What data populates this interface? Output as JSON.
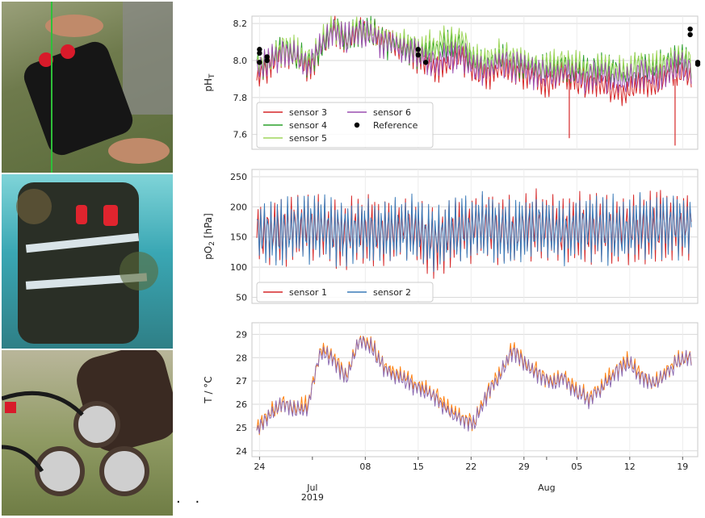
{
  "photos": [
    {
      "name": "sensor housing held in hands"
    },
    {
      "name": "sensor housing underwater with biofouling"
    },
    {
      "name": "recovered fouled sensor housing on grass"
    }
  ],
  "ellipsis": "· ·",
  "chart_data": [
    {
      "type": "line",
      "panel": "pH",
      "ylabel": "pH",
      "ylabel_sub": "T",
      "ylim": [
        7.52,
        8.24
      ],
      "yticks": [
        7.6,
        7.8,
        8.0,
        8.2
      ],
      "ytick_labels": [
        "7.6",
        "7.8",
        "8.0",
        "8.2"
      ],
      "grid": true,
      "legend_position": "lower-left",
      "legend_columns": 2,
      "series": [
        {
          "name": "sensor 3",
          "color": "#d62728",
          "values": [
            7.92,
            7.98,
            8.05,
            8.02,
            7.95,
            8.06,
            8.19,
            8.1,
            8.16,
            8.14,
            8.12,
            8.08,
            8.06,
            8.0,
            7.96,
            7.98,
            8.02,
            7.95,
            7.93,
            7.96,
            7.94,
            7.92,
            7.9,
            7.88,
            7.92,
            7.9,
            7.86,
            7.88,
            7.84,
            7.82,
            7.88,
            7.86,
            7.92,
            7.95,
            7.9
          ]
        },
        {
          "name": "sensor 4",
          "color": "#2ca02c",
          "values": [
            7.96,
            8.0,
            8.06,
            8.03,
            7.98,
            8.08,
            8.18,
            8.12,
            8.16,
            8.15,
            8.1,
            8.09,
            8.06,
            8.04,
            8.05,
            8.08,
            8.09,
            8.0,
            7.98,
            8.02,
            8.0,
            7.98,
            7.96,
            7.96,
            7.98,
            7.95,
            7.94,
            7.96,
            7.95,
            7.93,
            7.97,
            7.95,
            7.98,
            8.01,
            7.98
          ]
        },
        {
          "name": "sensor 5",
          "color": "#9fd65c",
          "values": [
            7.97,
            8.01,
            8.07,
            8.04,
            7.99,
            8.09,
            8.19,
            8.13,
            8.17,
            8.16,
            8.11,
            8.1,
            8.07,
            8.08,
            8.09,
            8.1,
            8.11,
            8.02,
            7.99,
            8.03,
            8.01,
            7.99,
            7.97,
            7.97,
            7.99,
            7.96,
            7.95,
            7.97,
            7.96,
            7.94,
            7.98,
            7.96,
            7.99,
            8.02,
            7.99
          ]
        },
        {
          "name": "sensor 6",
          "color": "#9b4fb0",
          "values": [
            7.95,
            7.99,
            8.05,
            8.02,
            7.97,
            8.07,
            8.17,
            8.11,
            8.15,
            8.14,
            8.09,
            8.08,
            8.05,
            8.02,
            7.99,
            8.01,
            8.03,
            7.97,
            7.95,
            7.99,
            7.97,
            7.95,
            7.93,
            7.92,
            7.95,
            7.92,
            7.9,
            7.92,
            7.9,
            7.88,
            7.93,
            7.91,
            7.95,
            7.98,
            7.95
          ]
        }
      ],
      "spikes": [
        {
          "series": "sensor 3",
          "x": "2019-08-04",
          "y": 7.58
        },
        {
          "series": "sensor 3",
          "x": "2019-08-18",
          "y": 7.54
        }
      ],
      "reference": {
        "name": "Reference",
        "color": "#000000",
        "points": [
          {
            "x": "2019-06-24",
            "y": 8.06
          },
          {
            "x": "2019-06-24",
            "y": 8.04
          },
          {
            "x": "2019-06-24",
            "y": 7.99
          },
          {
            "x": "2019-06-25",
            "y": 8.02
          },
          {
            "x": "2019-06-25",
            "y": 8.0
          },
          {
            "x": "2019-07-15",
            "y": 8.06
          },
          {
            "x": "2019-07-15",
            "y": 8.03
          },
          {
            "x": "2019-07-16",
            "y": 7.99
          },
          {
            "x": "2019-08-20",
            "y": 8.17
          },
          {
            "x": "2019-08-20",
            "y": 8.14
          },
          {
            "x": "2019-08-21",
            "y": 7.99
          },
          {
            "x": "2019-08-21",
            "y": 7.98
          }
        ]
      }
    },
    {
      "type": "line",
      "panel": "pO2",
      "ylabel": "pO",
      "ylabel_sub": "2",
      "ylabel_unit": " [hPa]",
      "ylim": [
        40,
        262
      ],
      "yticks": [
        50,
        100,
        150,
        200,
        250
      ],
      "ytick_labels": [
        "50",
        "100",
        "150",
        "200",
        "250"
      ],
      "grid": true,
      "legend_position": "lower-left",
      "legend_columns": 2,
      "series": [
        {
          "name": "sensor 1",
          "color": "#d62728",
          "values_low": [
            90,
            85,
            80,
            95,
            85,
            88,
            75,
            80,
            90,
            85,
            82,
            88,
            95,
            72,
            60,
            78,
            82,
            88,
            92,
            85,
            80,
            88,
            95,
            90,
            84,
            90,
            86,
            80,
            82,
            90,
            92,
            86,
            88,
            95,
            98
          ],
          "values_high": [
            225,
            230,
            235,
            240,
            242,
            245,
            238,
            232,
            240,
            236,
            228,
            236,
            242,
            230,
            220,
            238,
            242,
            244,
            246,
            238,
            232,
            240,
            246,
            236,
            230,
            238,
            244,
            248,
            242,
            234,
            240,
            246,
            250,
            244,
            245
          ]
        },
        {
          "name": "sensor 2",
          "color": "#3a7ab8",
          "values_low": [
            92,
            88,
            84,
            98,
            88,
            92,
            80,
            84,
            94,
            90,
            86,
            92,
            98,
            82,
            80,
            86,
            86,
            92,
            96,
            90,
            86,
            92,
            98,
            94,
            88,
            94,
            90,
            84,
            86,
            94,
            96,
            90,
            92,
            98,
            100
          ],
          "values_high": [
            222,
            226,
            230,
            236,
            238,
            242,
            232,
            228,
            236,
            230,
            224,
            232,
            236,
            226,
            216,
            232,
            236,
            238,
            240,
            232,
            228,
            236,
            240,
            232,
            226,
            234,
            240,
            244,
            238,
            230,
            236,
            242,
            246,
            240,
            240
          ]
        }
      ]
    },
    {
      "type": "line",
      "panel": "T",
      "ylabel": "T / °C",
      "ylim": [
        23.75,
        29.5
      ],
      "yticks": [
        24,
        25,
        26,
        27,
        28,
        29
      ],
      "ytick_labels": [
        "24",
        "25",
        "26",
        "27",
        "28",
        "29"
      ],
      "grid": true,
      "series": [
        {
          "name": "",
          "color": "#ff7f0e",
          "values": [
            25.0,
            25.6,
            26.1,
            25.8,
            26.0,
            28.4,
            28.0,
            27.2,
            28.8,
            28.5,
            27.6,
            27.3,
            27.0,
            26.7,
            26.4,
            25.8,
            25.4,
            25.2,
            26.5,
            27.3,
            28.4,
            27.8,
            27.4,
            27.0,
            27.2,
            26.6,
            26.3,
            26.8,
            27.4,
            27.9,
            27.3,
            26.9,
            27.4,
            27.9,
            28.1
          ]
        },
        {
          "name": "",
          "color": "#8c6bb1",
          "values": [
            24.9,
            25.5,
            26.0,
            25.7,
            25.9,
            28.3,
            27.9,
            27.1,
            28.7,
            28.4,
            27.5,
            27.2,
            26.9,
            26.6,
            26.3,
            25.7,
            25.3,
            25.1,
            26.4,
            27.2,
            28.3,
            27.7,
            27.3,
            26.9,
            27.1,
            26.5,
            26.2,
            26.7,
            27.3,
            27.8,
            27.2,
            26.8,
            27.3,
            27.8,
            28.0
          ]
        }
      ],
      "x_start": "2019-06-23",
      "x_end": "2019-08-21",
      "xticks": [
        {
          "date": "2019-06-24",
          "label": "24"
        },
        {
          "date": "2019-07-01",
          "label": "Jul\n2019"
        },
        {
          "date": "2019-07-08",
          "label": "08"
        },
        {
          "date": "2019-07-15",
          "label": "15"
        },
        {
          "date": "2019-07-22",
          "label": "22"
        },
        {
          "date": "2019-07-29",
          "label": "29"
        },
        {
          "date": "2019-08-01",
          "label": "Aug"
        },
        {
          "date": "2019-08-05",
          "label": "05"
        },
        {
          "date": "2019-08-12",
          "label": "12"
        },
        {
          "date": "2019-08-19",
          "label": "19"
        }
      ]
    }
  ]
}
